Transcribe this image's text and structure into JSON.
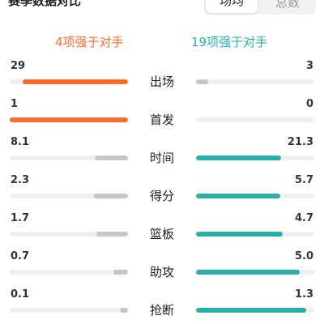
{
  "header": {
    "title": "赛季数据对比",
    "tabs": [
      {
        "label": "场均",
        "active": true
      },
      {
        "label": "总数",
        "active": false
      }
    ]
  },
  "summary": {
    "left": "4项强于对手",
    "right": "19项强于对手"
  },
  "colors": {
    "left_better": "#ff6a2b",
    "right_better": "#27b0aa",
    "worse": "#c6c6c6",
    "track": "#efefef"
  },
  "stats": [
    {
      "label": "出场",
      "left": "29",
      "right": "3",
      "left_fill": 0.89,
      "right_fill": 0.1,
      "winner": "left"
    },
    {
      "label": "首发",
      "left": "1",
      "right": "0",
      "left_fill": 1.0,
      "right_fill": 0.0,
      "winner": "left"
    },
    {
      "label": "时间",
      "left": "8.1",
      "right": "21.3",
      "left_fill": 0.28,
      "right_fill": 0.72,
      "winner": "right"
    },
    {
      "label": "得分",
      "left": "2.3",
      "right": "5.7",
      "left_fill": 0.29,
      "right_fill": 0.71,
      "winner": "right"
    },
    {
      "label": "篮板",
      "left": "1.7",
      "right": "4.7",
      "left_fill": 0.27,
      "right_fill": 0.73,
      "winner": "right"
    },
    {
      "label": "助攻",
      "left": "0.7",
      "right": "5.0",
      "left_fill": 0.12,
      "right_fill": 0.88,
      "winner": "right"
    },
    {
      "label": "抢断",
      "left": "0.1",
      "right": "1.3",
      "left_fill": 0.07,
      "right_fill": 0.93,
      "winner": "right"
    }
  ]
}
